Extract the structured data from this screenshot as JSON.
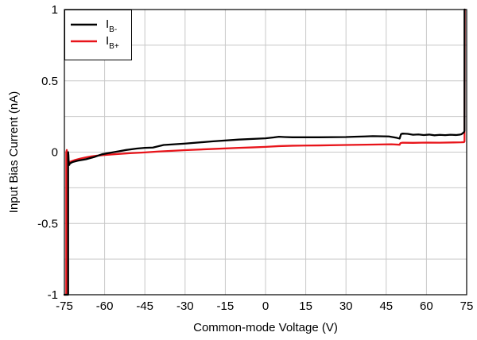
{
  "chart_data": {
    "type": "line",
    "title": "",
    "xlabel": "Common-mode Voltage (V)",
    "ylabel": "Input Bias Current (nA)",
    "xlim": [
      -75,
      75
    ],
    "ylim": [
      -1,
      1
    ],
    "xticks": [
      -75,
      -60,
      -45,
      -30,
      -15,
      0,
      15,
      30,
      45,
      60,
      75
    ],
    "yticks": [
      -1,
      -0.5,
      0,
      0.5,
      1
    ],
    "ytick_labels": [
      "-1",
      "-0.5",
      "0",
      "0.5",
      "1"
    ],
    "grid": true,
    "legend_position": "top-left",
    "series": [
      {
        "name": "IB-",
        "name_main": "I",
        "name_sub": "B-",
        "color": "#000000",
        "x": [
          -75,
          -73.6,
          -73.6,
          -73.5,
          -73.4,
          -73.2,
          -73.0,
          -72.0,
          -70,
          -67,
          -64,
          -61,
          -58,
          -55,
          -52,
          -48,
          -45,
          -42,
          -38,
          -30,
          -20,
          -10,
          0,
          3,
          5,
          7,
          10,
          20,
          30,
          33,
          37,
          40,
          46,
          49,
          50,
          50.5,
          51,
          53,
          55,
          57,
          59,
          61,
          63,
          65,
          67,
          69,
          71,
          72.5,
          73,
          73.5,
          74,
          74.2,
          74.2,
          74.3
        ],
        "y": [
          -1,
          -1,
          0,
          -0.02,
          -0.07,
          -0.09,
          -0.08,
          -0.07,
          -0.06,
          -0.05,
          -0.035,
          -0.015,
          -0.005,
          0.005,
          0.015,
          0.025,
          0.03,
          0.032,
          0.05,
          0.06,
          0.075,
          0.088,
          0.097,
          0.103,
          0.108,
          0.106,
          0.104,
          0.104,
          0.106,
          0.108,
          0.11,
          0.112,
          0.11,
          0.1,
          0.095,
          0.125,
          0.13,
          0.128,
          0.122,
          0.124,
          0.12,
          0.123,
          0.118,
          0.121,
          0.119,
          0.122,
          0.12,
          0.123,
          0.125,
          0.132,
          0.14,
          0.15,
          1,
          1
        ]
      },
      {
        "name": "IB+",
        "name_main": "I",
        "name_sub": "B+",
        "color": "#e8141a",
        "x": [
          -75,
          -74.3,
          -74.3,
          -74.1,
          -74.0,
          -73.6,
          -73.2,
          -72.5,
          -71,
          -69,
          -67,
          -65,
          -63,
          -60,
          -55,
          -50,
          -45,
          -40,
          -30,
          -20,
          -10,
          -5,
          0,
          5,
          10,
          20,
          30,
          40,
          47,
          50,
          50.3,
          51,
          55,
          60,
          65,
          70,
          73,
          74,
          74.2,
          74.3,
          74.3
        ],
        "y": [
          -1,
          -1,
          0,
          0.015,
          -0.02,
          -0.06,
          -0.07,
          -0.065,
          -0.055,
          -0.045,
          -0.037,
          -0.03,
          -0.025,
          -0.02,
          -0.013,
          -0.007,
          -0.002,
          0.004,
          0.014,
          0.022,
          0.03,
          0.033,
          0.037,
          0.042,
          0.045,
          0.047,
          0.05,
          0.053,
          0.055,
          0.052,
          0.063,
          0.066,
          0.065,
          0.067,
          0.066,
          0.068,
          0.069,
          0.07,
          0.075,
          1,
          1
        ]
      }
    ]
  }
}
